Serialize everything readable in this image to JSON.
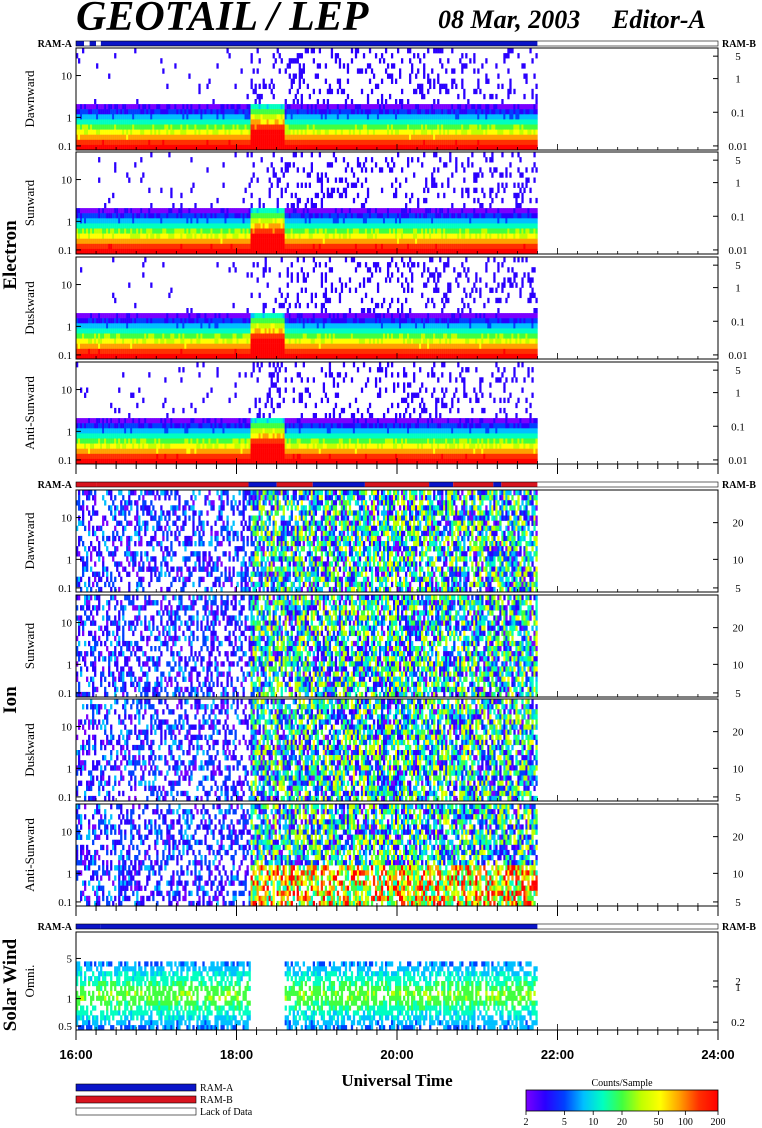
{
  "header": {
    "title": "GEOTAIL / LEP",
    "date": "08 Mar, 2003",
    "editor": "Editor-A"
  },
  "colors": {
    "ram_a": "#0a14c8",
    "ram_b": "#d8141e",
    "lack_of_data": "#ffffff",
    "colorbar": [
      "#7a00ff",
      "#2a00ff",
      "#0040ff",
      "#00c0ff",
      "#00ffc0",
      "#40ff40",
      "#c0ff00",
      "#ffff00",
      "#ffa000",
      "#ff3000",
      "#ff0000"
    ]
  },
  "ram_labels": {
    "left": "RAM-A",
    "right": "RAM-B"
  },
  "chart_data": {
    "type": "heatmap",
    "x_ticks": [
      "16:00",
      "18:00",
      "20:00",
      "22:00",
      "24:00"
    ],
    "x_range_hours": [
      16,
      24
    ],
    "data_end_hour": 21.75,
    "xlabel": "Universal Time",
    "groups": [
      {
        "name": "Electron",
        "ram_strip": [
          {
            "from": 16.0,
            "to": 16.1,
            "mode": "ram_a"
          },
          {
            "from": 16.1,
            "to": 16.17,
            "mode": "lack_of_data"
          },
          {
            "from": 16.17,
            "to": 16.25,
            "mode": "ram_a"
          },
          {
            "from": 16.25,
            "to": 16.31,
            "mode": "lack_of_data"
          },
          {
            "from": 16.31,
            "to": 21.75,
            "mode": "ram_a"
          },
          {
            "from": 21.75,
            "to": 24.0,
            "mode": "lack_of_data"
          }
        ],
        "panels": [
          {
            "label": "Dawnward",
            "left_ticks": [
              "10",
              "1",
              "0.1"
            ],
            "right_ticks": [
              "5",
              "1",
              "0.1",
              "0.01"
            ]
          },
          {
            "label": "Sunward",
            "left_ticks": [
              "10",
              "1",
              "0.1"
            ],
            "right_ticks": [
              "5",
              "1",
              "0.1",
              "0.01"
            ]
          },
          {
            "label": "Duskward",
            "left_ticks": [
              "10",
              "1",
              "0.1"
            ],
            "right_ticks": [
              "5",
              "1",
              "0.1",
              "0.01"
            ]
          },
          {
            "label": "Anti-Sunward",
            "left_ticks": [
              "10",
              "1",
              "0.1"
            ],
            "right_ticks": [
              "5",
              "1",
              "0.1",
              "0.01"
            ]
          }
        ]
      },
      {
        "name": "Ion",
        "ram_strip": [
          {
            "from": 16.0,
            "to": 16.25,
            "mode": "ram_b"
          },
          {
            "from": 16.25,
            "to": 18.15,
            "mode": "ram_b"
          },
          {
            "from": 18.15,
            "to": 18.5,
            "mode": "ram_a"
          },
          {
            "from": 18.5,
            "to": 18.95,
            "mode": "ram_b"
          },
          {
            "from": 18.95,
            "to": 19.6,
            "mode": "ram_a"
          },
          {
            "from": 19.6,
            "to": 20.4,
            "mode": "ram_b"
          },
          {
            "from": 20.4,
            "to": 20.7,
            "mode": "ram_a"
          },
          {
            "from": 20.7,
            "to": 21.2,
            "mode": "ram_b"
          },
          {
            "from": 21.2,
            "to": 21.3,
            "mode": "ram_a"
          },
          {
            "from": 21.3,
            "to": 21.75,
            "mode": "ram_b"
          },
          {
            "from": 21.75,
            "to": 24.0,
            "mode": "lack_of_data"
          }
        ],
        "panels": [
          {
            "label": "Dawnward",
            "left_ticks": [
              "10",
              "1",
              "0.1"
            ],
            "right_ticks": [
              "20",
              "10",
              "5"
            ]
          },
          {
            "label": "Sunward",
            "left_ticks": [
              "10",
              "1",
              "0.1"
            ],
            "right_ticks": [
              "20",
              "10",
              "5"
            ]
          },
          {
            "label": "Duskward",
            "left_ticks": [
              "10",
              "1",
              "0.1"
            ],
            "right_ticks": [
              "20",
              "10",
              "5"
            ]
          },
          {
            "label": "Anti-Sunward",
            "left_ticks": [
              "10",
              "1",
              "0.1"
            ],
            "right_ticks": [
              "20",
              "10",
              "5"
            ]
          }
        ]
      },
      {
        "name": "Solar Wind",
        "ram_strip": [
          {
            "from": 16.0,
            "to": 16.31,
            "mode": "ram_a"
          },
          {
            "from": 16.31,
            "to": 21.75,
            "mode": "ram_a"
          },
          {
            "from": 21.75,
            "to": 24.0,
            "mode": "lack_of_data"
          }
        ],
        "panels": [
          {
            "label": "Omni.",
            "left_ticks": [
              "5",
              "1",
              "0.5"
            ],
            "right_ticks": [
              "2",
              "1",
              "0.2"
            ]
          }
        ]
      }
    ],
    "legend": [
      {
        "label": "RAM-A",
        "color": "#0a14c8"
      },
      {
        "label": "RAM-B",
        "color": "#d8141e"
      },
      {
        "label": "Lack of Data",
        "color": "#ffffff"
      }
    ],
    "colorbar": {
      "title": "Counts/Sample",
      "ticks": [
        "2",
        "5",
        "10",
        "20",
        "50",
        "100",
        "200"
      ]
    }
  }
}
